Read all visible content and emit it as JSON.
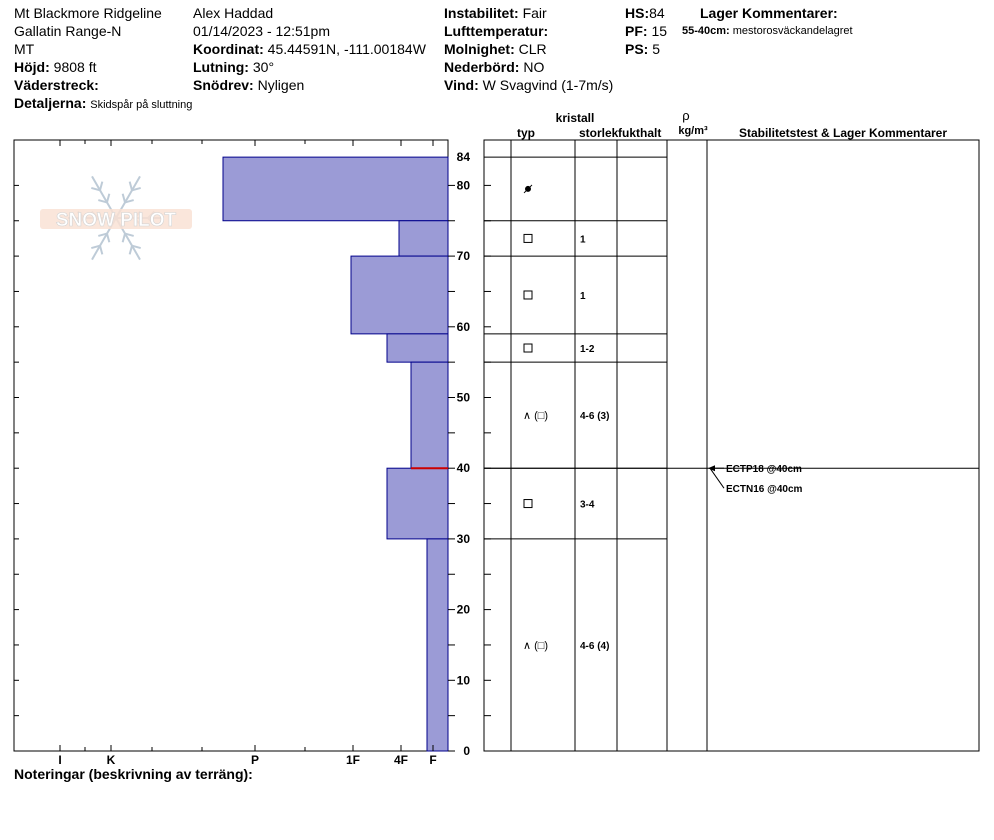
{
  "header": {
    "location": "Mt Blackmore Ridgeline",
    "range": "Gallatin Range-N",
    "state": "MT",
    "elevation_label": "Höjd:",
    "elevation": "9808 ft",
    "aspect_label": "Väderstreck:",
    "aspect": "",
    "details_label": "Detaljerna:",
    "details": "Skidspår på sluttning",
    "observer": "Alex Haddad",
    "datetime": "01/14/2023 - 12:51pm",
    "coord_label": "Koordinat:",
    "coord": "45.44591N, -111.00184W",
    "slope_label": "Lutning:",
    "slope": "30°",
    "drift_label": "Snödrev:",
    "drift": "Nyligen",
    "instability_label": "Instabilitet:",
    "instability": "Fair",
    "airtemp_label": "Lufttemperatur:",
    "airtemp": "",
    "cloud_label": "Molnighet:",
    "cloud": "CLR",
    "precip_label": "Nederbörd:",
    "precip": "NO",
    "wind_label": "Vind:",
    "wind": "W Svagvind (1-7m/s)",
    "hs_label": "HS:",
    "hs": "84",
    "pf_label": "PF:",
    "pf": "15",
    "ps_label": "PS:",
    "ps": "5",
    "layer_comments_title": "Lager Kommentarer:",
    "layer_comment_depth": "55-40cm:",
    "layer_comment_text": "mestorosväckandelagret"
  },
  "table_headers": {
    "crystal": "kristall",
    "type": "typ",
    "size": "storlek",
    "moisture": "fukthalt",
    "rho": "ρ",
    "density_unit": "kg/m³",
    "stability": "Stabilitetstest & Lager Kommentarer"
  },
  "notes_label": "Noteringar (beskrivning av terräng):",
  "logo_text": "SNOW PILOT",
  "colors": {
    "layer_fill": "#9b9bd6",
    "layer_stroke": "#00008b",
    "weak_layer": "#cc0000",
    "grid": "#000000"
  },
  "chart_data": {
    "type": "bar",
    "orientation": "horizontal",
    "ylabel": "",
    "ylim": [
      0,
      84
    ],
    "y_ticks": [
      0,
      10,
      20,
      30,
      40,
      50,
      60,
      70,
      80,
      84
    ],
    "hardness_scale": [
      "I",
      "K",
      "P",
      "1F",
      "4F",
      "F"
    ],
    "layers": [
      {
        "top": 84,
        "bottom": 75,
        "hardness": "P-"
      },
      {
        "top": 75,
        "bottom": 70,
        "hardness": "4F"
      },
      {
        "top": 70,
        "bottom": 59,
        "hardness": "1F"
      },
      {
        "top": 59,
        "bottom": 55,
        "hardness": "4F+"
      },
      {
        "top": 55,
        "bottom": 40,
        "hardness": "4F-"
      },
      {
        "top": 40,
        "bottom": 30,
        "hardness": "4F+"
      },
      {
        "top": 30,
        "bottom": 0,
        "hardness": "F+"
      }
    ],
    "weak_layer_depth": 40,
    "crystal_rows": [
      {
        "depth": 79.5,
        "type": "precip",
        "symbol": "",
        "size": ""
      },
      {
        "depth": 72.5,
        "type": "square",
        "symbol": "",
        "size": "1"
      },
      {
        "depth": 64.5,
        "type": "square",
        "symbol": "",
        "size": "1"
      },
      {
        "depth": 57,
        "type": "square",
        "symbol": "",
        "size": "1-2"
      },
      {
        "depth": 47.5,
        "type": "facet-mixed",
        "symbol": "∧ (□)",
        "size": "4-6 (3)"
      },
      {
        "depth": 35,
        "type": "square",
        "symbol": "",
        "size": "3-4"
      },
      {
        "depth": 15,
        "type": "facet-mixed",
        "symbol": "∧ (□)",
        "size": "4-6 (4)"
      }
    ],
    "boundaries": [
      84,
      75,
      70,
      59,
      55,
      40,
      30
    ],
    "tests": [
      {
        "label": "ECTP18 @40cm",
        "depth": 40
      },
      {
        "label": "ECTN16 @40cm",
        "depth": 40
      }
    ]
  }
}
